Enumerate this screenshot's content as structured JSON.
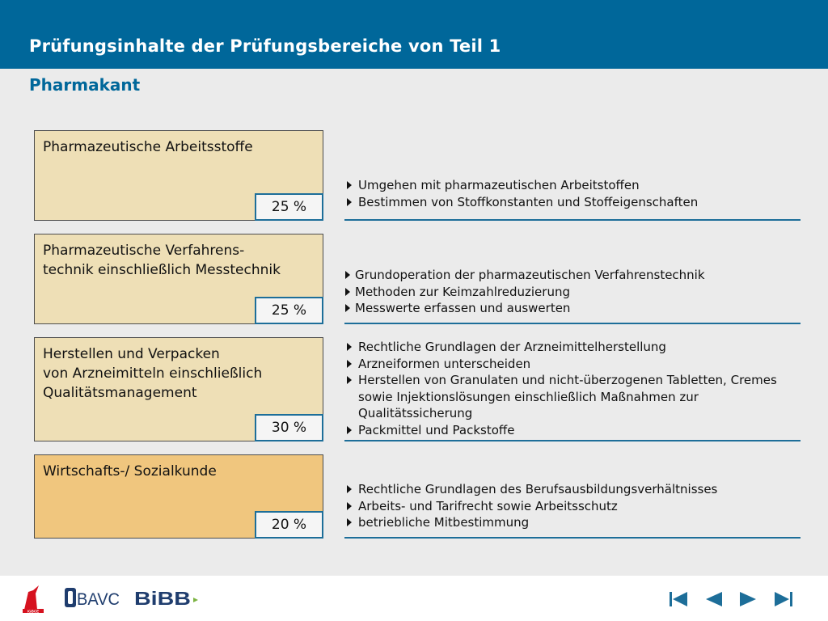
{
  "header": {
    "title": "Prüfungsinhalte der Prüfungsbereiche von Teil 1",
    "subtitle": "Pharmakant"
  },
  "areas": [
    {
      "label": "Pharmazeutische Arbeitsstoffe",
      "percent": "25 %",
      "items": [
        "Umgehen mit pharmazeutischen Arbeitstoffen",
        "Bestimmen von Stoffkonstanten und Stoffeigenschaften"
      ]
    },
    {
      "label": "Pharmazeutische Verfahrens-\ntechnik einschließlich Messtechnik",
      "percent": "25 %",
      "items": [
        "Grundoperation der pharmazeutischen Verfahrenstechnik",
        "Methoden zur Keimzahlreduzierung",
        "Messwerte erfassen und auswerten"
      ]
    },
    {
      "label": "Herstellen und Verpacken\nvon Arzneimitteln einschließlich\nQualitätsmanagement",
      "percent": "30 %",
      "items": [
        "Rechtliche Grundlagen der Arzneimittelherstellung",
        "Arzneiformen unterscheiden",
        "Herstellen von Granulaten und nicht-überzogenen Tabletten, Cremes sowie Injektionslösungen einschließlich Maßnahmen zur Qualitätssicherung",
        "Packmittel und Packstoffe"
      ]
    },
    {
      "label": "Wirtschafts-/ Sozialkunde",
      "percent": "20 %",
      "items": [
        "Rechtliche Grundlagen des Berufsausbildungsverhältnisses",
        "Arbeits- und Tarifrecht sowie Arbeitsschutz",
        "betriebliche Mitbestimmung"
      ]
    }
  ],
  "footer": {
    "logos": [
      {
        "icon": "igbce-logo",
        "text": "IGBCE"
      },
      {
        "icon": "bavc-logo",
        "text": "BAVC"
      },
      {
        "icon": "bibb-logo",
        "text": "BiBB"
      }
    ],
    "nav_color": "#1d6e99"
  },
  "colors": {
    "header": "#00679a",
    "box_light": "#eedfb6",
    "box_dark": "#f0c67e",
    "rule": "#1d6e99"
  }
}
